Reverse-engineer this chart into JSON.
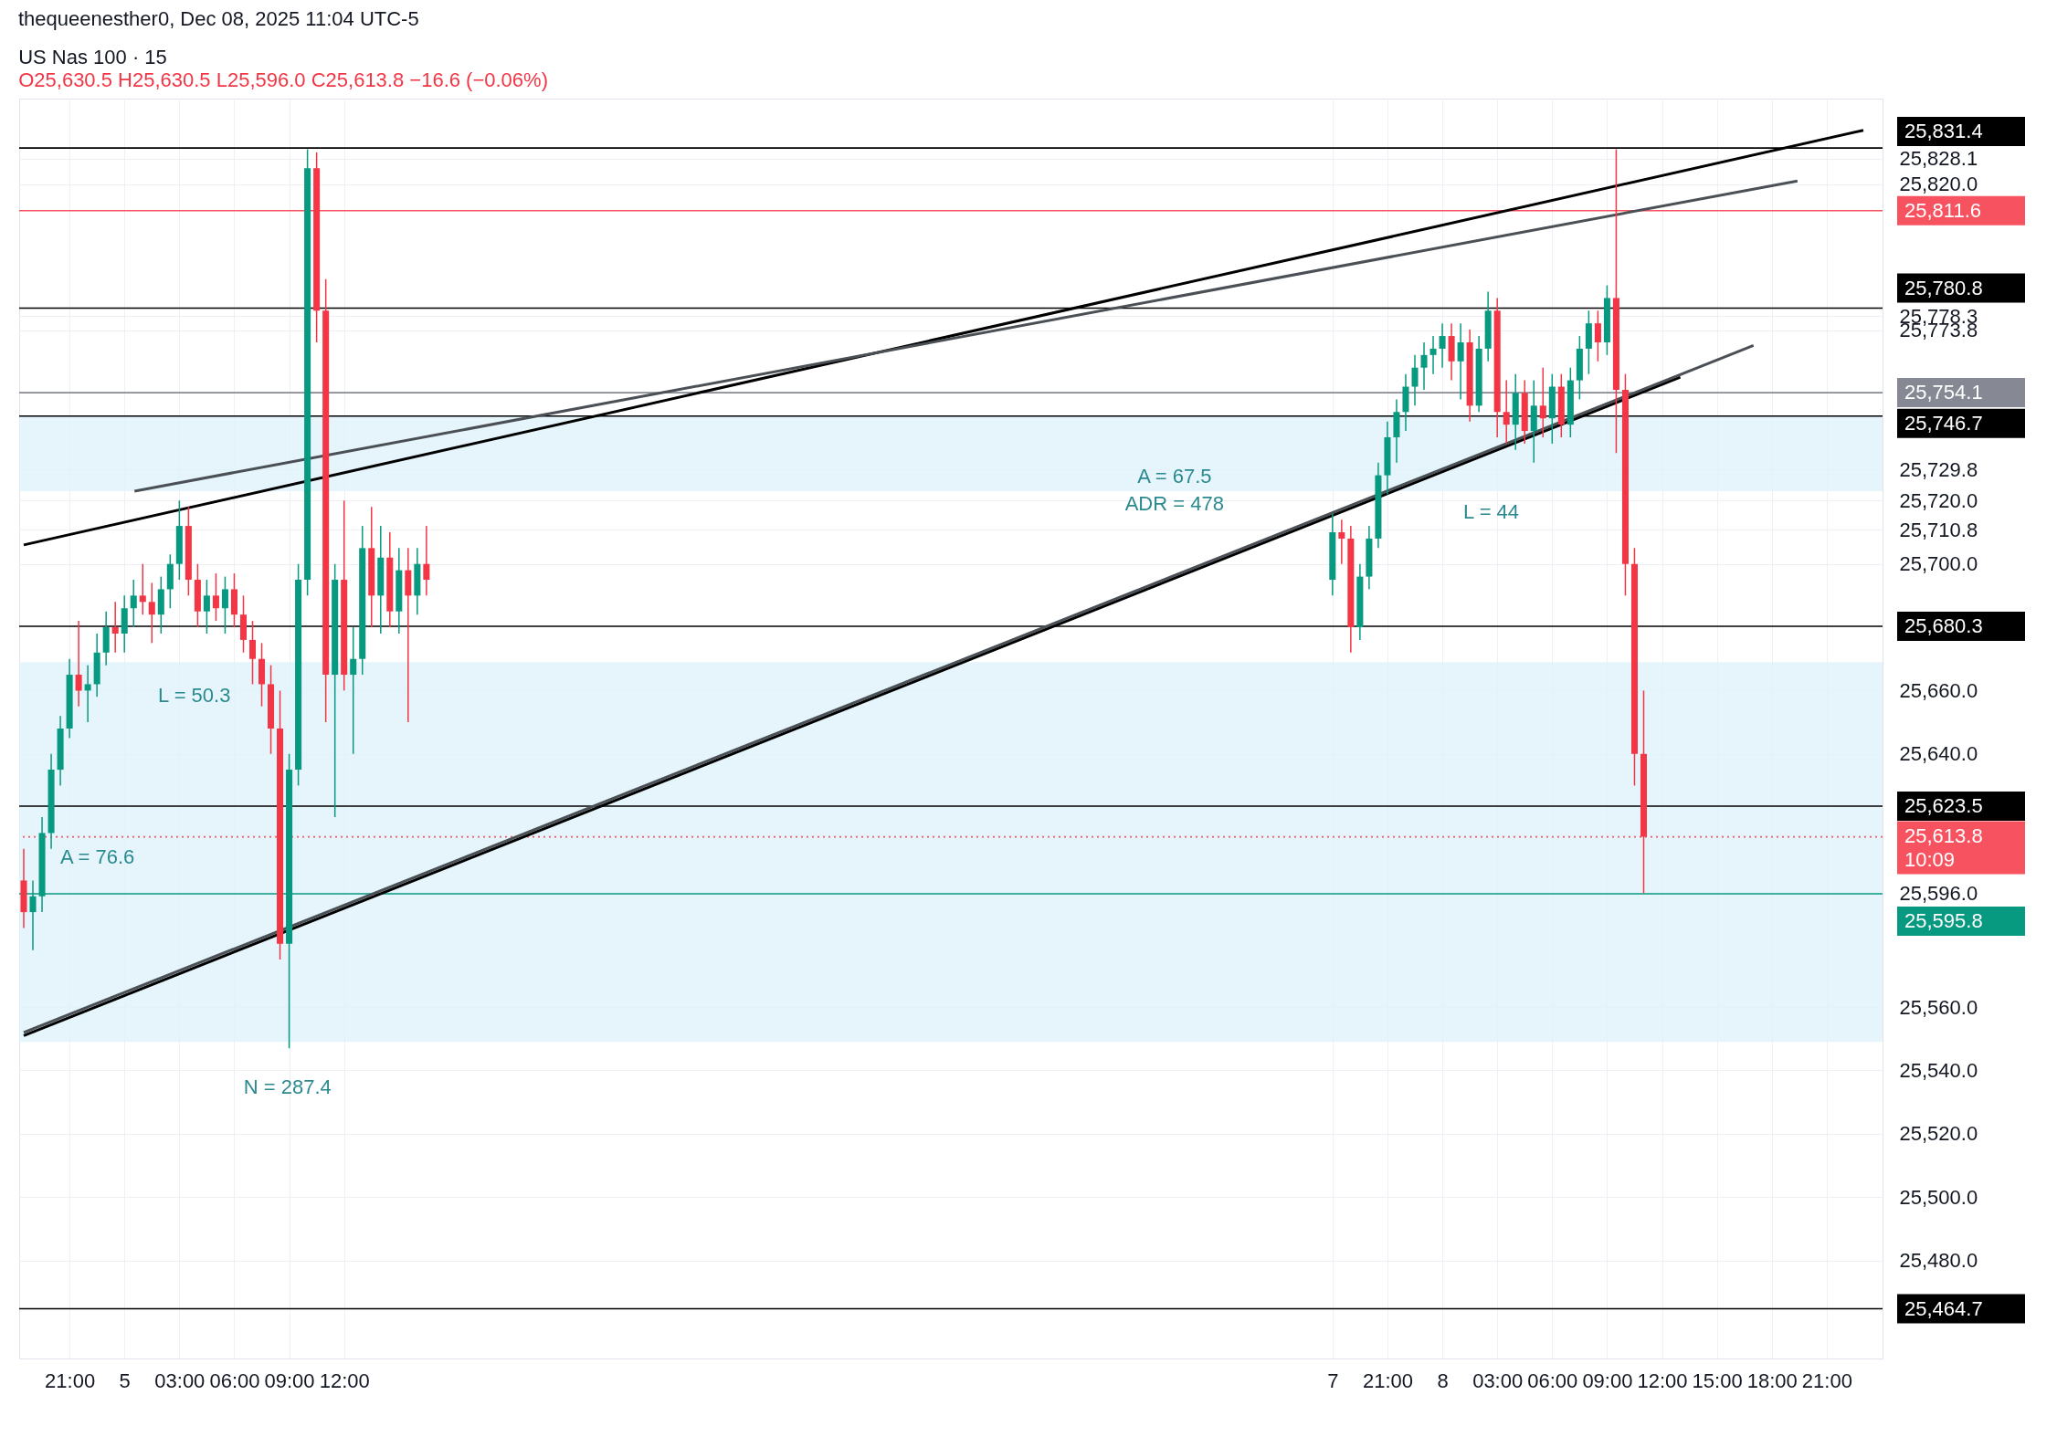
{
  "chart_data": {
    "type": "candlestick",
    "title": "US Nas 100 · 15",
    "subtitle": "O25,630.5 H25,630.5 L25,596.0 C25,613.8 −16.6 (−0.06%)",
    "annotations": [
      "thequeenesther0, Dec 08, 2025 11:04 UTC-5",
      "L = 50.3",
      "A = 76.6",
      "A = 67.5",
      "ADR = 478",
      "L = 44",
      "N = 287.4"
    ],
    "x": [
      "2025-12-04T18:30",
      "2025-12-04T19:00",
      "2025-12-04T19:30",
      "2025-12-04T20:00",
      "2025-12-04T20:30",
      "2025-12-04T21:00",
      "2025-12-04T21:30",
      "2025-12-04T22:00",
      "2025-12-04T22:30",
      "2025-12-04T23:00",
      "2025-12-04T23:30",
      "2025-12-05T00:00",
      "2025-12-05T00:30",
      "2025-12-05T01:00",
      "2025-12-05T01:30",
      "2025-12-05T02:00",
      "2025-12-05T02:30",
      "2025-12-05T03:00",
      "2025-12-05T03:30",
      "2025-12-05T04:00",
      "2025-12-05T04:30",
      "2025-12-05T05:00",
      "2025-12-05T05:30",
      "2025-12-05T06:00",
      "2025-12-05T06:30",
      "2025-12-05T07:00",
      "2025-12-05T07:30",
      "2025-12-05T08:00",
      "2025-12-05T08:30",
      "2025-12-05T09:00",
      "2025-12-05T09:30",
      "2025-12-05T10:00",
      "2025-12-05T10:30",
      "2025-12-05T11:00",
      "2025-12-05T11:30",
      "2025-12-05T12:00",
      "2025-12-05T12:30",
      "2025-12-05T13:00",
      "2025-12-05T13:30",
      "2025-12-05T14:00",
      "2025-12-05T14:30",
      "2025-12-05T15:00",
      "2025-12-05T15:30",
      "2025-12-05T16:00",
      "2025-12-05T16:30",
      "2025-12-07T18:00",
      "2025-12-07T18:30",
      "2025-12-07T19:00",
      "2025-12-07T19:30",
      "2025-12-07T20:00",
      "2025-12-07T20:30",
      "2025-12-07T21:00",
      "2025-12-07T21:30",
      "2025-12-07T22:00",
      "2025-12-07T22:30",
      "2025-12-07T23:00",
      "2025-12-07T23:30",
      "2025-12-08T00:00",
      "2025-12-08T00:30",
      "2025-12-08T01:00",
      "2025-12-08T01:30",
      "2025-12-08T02:00",
      "2025-12-08T02:30",
      "2025-12-08T03:00",
      "2025-12-08T03:30",
      "2025-12-08T04:00",
      "2025-12-08T04:30",
      "2025-12-08T05:00",
      "2025-12-08T05:30",
      "2025-12-08T06:00",
      "2025-12-08T06:30",
      "2025-12-08T07:00",
      "2025-12-08T07:30",
      "2025-12-08T08:00",
      "2025-12-08T08:30",
      "2025-12-08T09:00",
      "2025-12-08T09:30",
      "2025-12-08T10:00",
      "2025-12-08T10:30",
      "2025-12-08T11:00"
    ],
    "ohlc": [
      [
        25600,
        25610,
        25585,
        25590
      ],
      [
        25590,
        25600,
        25578,
        25595
      ],
      [
        25595,
        25620,
        25590,
        25615
      ],
      [
        25615,
        25640,
        25610,
        25635
      ],
      [
        25635,
        25652,
        25630,
        25648
      ],
      [
        25648,
        25670,
        25645,
        25665
      ],
      [
        25665,
        25682,
        25655,
        25660
      ],
      [
        25660,
        25668,
        25650,
        25662
      ],
      [
        25662,
        25678,
        25658,
        25672
      ],
      [
        25672,
        25685,
        25668,
        25680
      ],
      [
        25680,
        25688,
        25672,
        25678
      ],
      [
        25678,
        25690,
        25672,
        25686
      ],
      [
        25686,
        25695,
        25680,
        25690
      ],
      [
        25690,
        25700,
        25684,
        25688
      ],
      [
        25688,
        25694,
        25675,
        25684
      ],
      [
        25684,
        25696,
        25678,
        25692
      ],
      [
        25692,
        25703,
        25686,
        25700
      ],
      [
        25700,
        25720,
        25695,
        25712
      ],
      [
        25712,
        25718,
        25690,
        25695
      ],
      [
        25695,
        25700,
        25680,
        25685
      ],
      [
        25685,
        25695,
        25678,
        25690
      ],
      [
        25690,
        25697,
        25682,
        25686
      ],
      [
        25686,
        25696,
        25678,
        25692
      ],
      [
        25692,
        25697,
        25680,
        25684
      ],
      [
        25684,
        25690,
        25672,
        25676
      ],
      [
        25676,
        25682,
        25662,
        25670
      ],
      [
        25670,
        25675,
        25655,
        25662
      ],
      [
        25662,
        25668,
        25640,
        25648
      ],
      [
        25648,
        25660,
        25575,
        25580
      ],
      [
        25580,
        25640,
        25547,
        25635
      ],
      [
        25635,
        25700,
        25630,
        25695
      ],
      [
        25695,
        25831,
        25690,
        25825
      ],
      [
        25825,
        25830,
        25770,
        25780
      ],
      [
        25780,
        25790,
        25650,
        25665
      ],
      [
        25665,
        25700,
        25620,
        25695
      ],
      [
        25695,
        25720,
        25660,
        25665
      ],
      [
        25665,
        25680,
        25640,
        25670
      ],
      [
        25670,
        25712,
        25665,
        25705
      ],
      [
        25705,
        25718,
        25680,
        25690
      ],
      [
        25690,
        25712,
        25678,
        25702
      ],
      [
        25702,
        25710,
        25680,
        25685
      ],
      [
        25685,
        25705,
        25678,
        25698
      ],
      [
        25698,
        25705,
        25650,
        25690
      ],
      [
        25690,
        25705,
        25684,
        25700
      ],
      [
        25700,
        25712,
        25690,
        25695
      ],
      [
        25695,
        25716,
        25690,
        25710
      ],
      [
        25710,
        25714,
        25700,
        25708
      ],
      [
        25708,
        25712,
        25672,
        25680
      ],
      [
        25680,
        25700,
        25676,
        25696
      ],
      [
        25696,
        25712,
        25692,
        25708
      ],
      [
        25708,
        25732,
        25705,
        25728
      ],
      [
        25728,
        25745,
        25722,
        25740
      ],
      [
        25740,
        25752,
        25732,
        25748
      ],
      [
        25748,
        25760,
        25742,
        25756
      ],
      [
        25756,
        25766,
        25750,
        25762
      ],
      [
        25762,
        25770,
        25755,
        25766
      ],
      [
        25766,
        25772,
        25760,
        25768
      ],
      [
        25768,
        25776,
        25762,
        25772
      ],
      [
        25772,
        25776,
        25758,
        25764
      ],
      [
        25764,
        25776,
        25752,
        25770
      ],
      [
        25770,
        25774,
        25745,
        25750
      ],
      [
        25750,
        25772,
        25748,
        25768
      ],
      [
        25768,
        25786,
        25764,
        25780
      ],
      [
        25780,
        25784,
        25740,
        25748
      ],
      [
        25748,
        25758,
        25738,
        25744
      ],
      [
        25744,
        25760,
        25736,
        25754
      ],
      [
        25754,
        25758,
        25738,
        25742
      ],
      [
        25742,
        25758,
        25732,
        25750
      ],
      [
        25750,
        25762,
        25740,
        25746
      ],
      [
        25746,
        25760,
        25738,
        25756
      ],
      [
        25756,
        25760,
        25740,
        25744
      ],
      [
        25744,
        25762,
        25740,
        25758
      ],
      [
        25758,
        25772,
        25752,
        25768
      ],
      [
        25768,
        25780,
        25760,
        25776
      ],
      [
        25776,
        25780,
        25764,
        25770
      ],
      [
        25770,
        25788,
        25766,
        25784
      ],
      [
        25784,
        25831,
        25735,
        25755
      ],
      [
        25755,
        25760,
        25690,
        25700
      ],
      [
        25700,
        25705,
        25630,
        25640
      ],
      [
        25640,
        25660,
        25596,
        25613.8
      ]
    ],
    "series": [
      {
        "type": "line",
        "color": "#000000",
        "x": [
          "2025-12-04T18:30",
          "2025-12-08T23:00"
        ],
        "values": [
          25706,
          25837
        ]
      },
      {
        "type": "line",
        "color": "#4a5055",
        "x": [
          "2025-12-05T00:33",
          "2025-12-08T19:24"
        ],
        "values": [
          25723,
          25821
        ]
      },
      {
        "type": "line",
        "color": "#000000",
        "x": [
          "2025-12-04T18:30",
          "2025-12-08T13:00"
        ],
        "values": [
          25551,
          25759
        ]
      },
      {
        "type": "line",
        "color": "#4a5055",
        "x": [
          "2025-12-04T18:30",
          "2025-12-08T17:00"
        ],
        "values": [
          25552,
          25769
        ]
      }
    ],
    "xlim": [
      "2025-12-04T18:30",
      "2025-12-08T23:48"
    ],
    "xticks": [
      {
        "value": "2025-12-04T21:00",
        "label": "21:00"
      },
      {
        "value": "2025-12-05T00:00",
        "label": "5"
      },
      {
        "value": "2025-12-05T03:00",
        "label": "03:00"
      },
      {
        "value": "2025-12-05T06:00",
        "label": "06:00"
      },
      {
        "value": "2025-12-05T09:00",
        "label": "09:00"
      },
      {
        "value": "2025-12-05T12:00",
        "label": "12:00"
      },
      {
        "value": "2025-12-07T18:00",
        "label": "7"
      },
      {
        "value": "2025-12-07T21:00",
        "label": "21:00"
      },
      {
        "value": "2025-12-08T00:00",
        "label": "8"
      },
      {
        "value": "2025-12-08T03:00",
        "label": "03:00"
      },
      {
        "value": "2025-12-08T06:00",
        "label": "06:00"
      },
      {
        "value": "2025-12-08T09:00",
        "label": "09:00"
      },
      {
        "value": "2025-12-08T12:00",
        "label": "12:00"
      },
      {
        "value": "2025-12-08T15:00",
        "label": "15:00"
      },
      {
        "value": "2025-12-08T18:00",
        "label": "18:00"
      },
      {
        "value": "2025-12-08T21:00",
        "label": "21:00"
      }
    ],
    "ylim": [
      25449,
      25847
    ],
    "yticks": [
      {
        "value": 25480,
        "label": "25,480.0"
      },
      {
        "value": 25500,
        "label": "25,500.0"
      },
      {
        "value": 25520,
        "label": "25,520.0"
      },
      {
        "value": 25540,
        "label": "25,540.0"
      },
      {
        "value": 25560,
        "label": "25,560.0"
      },
      {
        "value": 25596.0,
        "label": "25,596.0"
      },
      {
        "value": 25640,
        "label": "25,640.0"
      },
      {
        "value": 25660,
        "label": "25,660.0"
      },
      {
        "value": 25700,
        "label": "25,700.0"
      },
      {
        "value": 25710.8,
        "label": "25,710.8"
      },
      {
        "value": 25720,
        "label": "25,720.0"
      },
      {
        "value": 25729.8,
        "label": "25,729.8"
      },
      {
        "value": 25773.8,
        "label": "25,773.8"
      },
      {
        "value": 25778.3,
        "label": "25,778.3"
      },
      {
        "value": 25820,
        "label": "25,820.0"
      },
      {
        "value": 25828.1,
        "label": "25,828.1"
      }
    ],
    "grid": true,
    "bands": [
      {
        "axis": "y",
        "from": 25723,
        "to": 25746.7,
        "color": "#dff3fa"
      },
      {
        "axis": "y",
        "from": 25549,
        "to": 25669,
        "color": "#dff3fa"
      }
    ],
    "ref_lines": [
      {
        "axis": "y",
        "value": 25831.4,
        "label": "25,831.4",
        "color": "#000000"
      },
      {
        "axis": "y",
        "value": 25811.6,
        "label": "25,811.6",
        "color": "#f7525f"
      },
      {
        "axis": "y",
        "value": 25780.8,
        "label": "25,780.8",
        "color": "#000000"
      },
      {
        "axis": "y",
        "value": 25754.1,
        "label": "25,754.1",
        "color": "#868993"
      },
      {
        "axis": "y",
        "value": 25746.7,
        "label": "25,746.7",
        "color": "#000000"
      },
      {
        "axis": "y",
        "value": 25680.3,
        "label": "25,680.3",
        "color": "#000000"
      },
      {
        "axis": "y",
        "value": 25623.5,
        "label": "25,623.5",
        "color": "#000000"
      },
      {
        "axis": "y",
        "value": 25613.8,
        "label": "25,613.8\n10:09",
        "color": "#f7525f",
        "line_style": "dotted"
      },
      {
        "axis": "y",
        "value": 25595.8,
        "label": "25,595.8",
        "color": "#089981"
      },
      {
        "axis": "y",
        "value": 25464.7,
        "label": "25,464.7",
        "color": "#000000"
      }
    ]
  }
}
